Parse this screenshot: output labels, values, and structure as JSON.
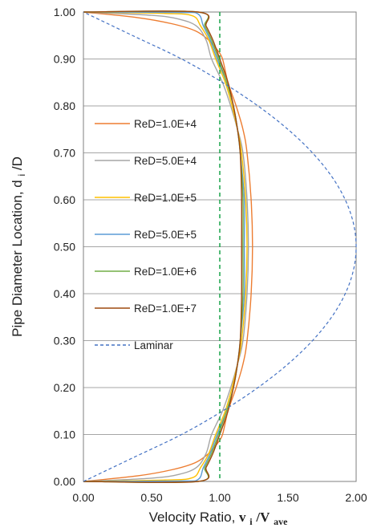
{
  "chart_data": {
    "type": "line",
    "xlabel_main": "Velocity Ratio,",
    "xlabel_var": "v",
    "xlabel_sub1": "i",
    "xlabel_slash": "/V",
    "xlabel_sub2": "ave",
    "ylabel_main": "Pipe Diameter Location, d",
    "ylabel_sub": "i",
    "ylabel_tail": "/D",
    "xlim": [
      0,
      2
    ],
    "ylim": [
      0,
      1
    ],
    "x_ticks": [
      "0.00",
      "0.50",
      "1.00",
      "1.50",
      "2.00"
    ],
    "y_ticks": [
      "0.00",
      "0.10",
      "0.20",
      "0.30",
      "0.40",
      "0.50",
      "0.60",
      "0.70",
      "0.80",
      "0.90",
      "1.00"
    ],
    "grid": "horizontal",
    "legend_position": "left-middle",
    "reference_line": {
      "x": 1.0,
      "style": "dashed",
      "color": "#1aa34a"
    },
    "series": [
      {
        "name": "ReD=1.0E+4",
        "color": "#ed7d31",
        "dash": false,
        "points": [
          [
            0.0,
            0.0
          ],
          [
            0.4,
            0.012
          ],
          [
            0.65,
            0.025
          ],
          [
            0.82,
            0.04
          ],
          [
            0.92,
            0.06
          ],
          [
            0.98,
            0.08
          ],
          [
            1.02,
            0.1
          ],
          [
            1.06,
            0.15
          ],
          [
            1.12,
            0.2
          ],
          [
            1.17,
            0.25
          ],
          [
            1.2,
            0.3
          ],
          [
            1.23,
            0.4
          ],
          [
            1.24,
            0.5
          ],
          [
            1.23,
            0.6
          ],
          [
            1.2,
            0.7
          ],
          [
            1.17,
            0.75
          ],
          [
            1.12,
            0.8
          ],
          [
            1.06,
            0.85
          ],
          [
            1.02,
            0.9
          ],
          [
            0.98,
            0.92
          ],
          [
            0.92,
            0.94
          ],
          [
            0.82,
            0.96
          ],
          [
            0.65,
            0.975
          ],
          [
            0.4,
            0.988
          ],
          [
            0.0,
            1.0
          ]
        ]
      },
      {
        "name": "ReD=5.0E+4",
        "color": "#a5a5a5",
        "dash": false,
        "points": [
          [
            0.0,
            0.0
          ],
          [
            0.5,
            0.007
          ],
          [
            0.7,
            0.015
          ],
          [
            0.83,
            0.03
          ],
          [
            0.9,
            0.06
          ],
          [
            0.94,
            0.1
          ],
          [
            1.02,
            0.15
          ],
          [
            1.08,
            0.2
          ],
          [
            1.13,
            0.25
          ],
          [
            1.17,
            0.3
          ],
          [
            1.2,
            0.4
          ],
          [
            1.21,
            0.5
          ],
          [
            1.2,
            0.6
          ],
          [
            1.17,
            0.7
          ],
          [
            1.13,
            0.75
          ],
          [
            1.08,
            0.8
          ],
          [
            1.02,
            0.85
          ],
          [
            0.94,
            0.9
          ],
          [
            0.9,
            0.94
          ],
          [
            0.83,
            0.97
          ],
          [
            0.7,
            0.985
          ],
          [
            0.5,
            0.993
          ],
          [
            0.0,
            1.0
          ]
        ]
      },
      {
        "name": "ReD=1.0E+5",
        "color": "#ffc000",
        "dash": false,
        "points": [
          [
            0.0,
            0.0
          ],
          [
            0.6,
            0.003
          ],
          [
            0.8,
            0.008
          ],
          [
            0.86,
            0.03
          ],
          [
            0.92,
            0.06
          ],
          [
            0.97,
            0.1
          ],
          [
            1.04,
            0.15
          ],
          [
            1.09,
            0.2
          ],
          [
            1.13,
            0.25
          ],
          [
            1.16,
            0.3
          ],
          [
            1.19,
            0.4
          ],
          [
            1.2,
            0.5
          ],
          [
            1.19,
            0.6
          ],
          [
            1.16,
            0.7
          ],
          [
            1.13,
            0.75
          ],
          [
            1.09,
            0.8
          ],
          [
            1.04,
            0.85
          ],
          [
            0.97,
            0.9
          ],
          [
            0.92,
            0.94
          ],
          [
            0.86,
            0.97
          ],
          [
            0.8,
            0.992
          ],
          [
            0.6,
            0.997
          ],
          [
            0.0,
            1.0
          ]
        ]
      },
      {
        "name": "ReD=5.0E+5",
        "color": "#5b9bd5",
        "dash": false,
        "points": [
          [
            0.0,
            0.0
          ],
          [
            0.7,
            0.001
          ],
          [
            0.84,
            0.004
          ],
          [
            0.88,
            0.03
          ],
          [
            0.93,
            0.06
          ],
          [
            0.98,
            0.1
          ],
          [
            1.05,
            0.15
          ],
          [
            1.1,
            0.2
          ],
          [
            1.13,
            0.25
          ],
          [
            1.15,
            0.3
          ],
          [
            1.18,
            0.4
          ],
          [
            1.18,
            0.5
          ],
          [
            1.18,
            0.6
          ],
          [
            1.15,
            0.7
          ],
          [
            1.13,
            0.75
          ],
          [
            1.1,
            0.8
          ],
          [
            1.05,
            0.85
          ],
          [
            0.98,
            0.9
          ],
          [
            0.93,
            0.94
          ],
          [
            0.88,
            0.97
          ],
          [
            0.84,
            0.996
          ],
          [
            0.7,
            0.999
          ],
          [
            0.0,
            1.0
          ]
        ]
      },
      {
        "name": "ReD=1.0E+6",
        "color": "#70ad47",
        "dash": false,
        "points": [
          [
            0.0,
            0.0
          ],
          [
            0.84,
            0.0
          ],
          [
            0.89,
            0.03
          ],
          [
            0.94,
            0.06
          ],
          [
            0.99,
            0.1
          ],
          [
            1.05,
            0.15
          ],
          [
            1.1,
            0.2
          ],
          [
            1.13,
            0.25
          ],
          [
            1.15,
            0.3
          ],
          [
            1.17,
            0.4
          ],
          [
            1.17,
            0.5
          ],
          [
            1.17,
            0.6
          ],
          [
            1.15,
            0.7
          ],
          [
            1.13,
            0.75
          ],
          [
            1.1,
            0.8
          ],
          [
            1.05,
            0.85
          ],
          [
            0.99,
            0.9
          ],
          [
            0.94,
            0.94
          ],
          [
            0.89,
            0.97
          ],
          [
            0.84,
            1.0
          ],
          [
            0.0,
            1.0
          ]
        ]
      },
      {
        "name": "ReD=1.0E+7",
        "color": "#9e480e",
        "dash": false,
        "points": [
          [
            0.0,
            0.0
          ],
          [
            0.84,
            0.0
          ],
          [
            0.9,
            0.03
          ],
          [
            0.95,
            0.06
          ],
          [
            1.0,
            0.1
          ],
          [
            1.06,
            0.15
          ],
          [
            1.1,
            0.2
          ],
          [
            1.13,
            0.25
          ],
          [
            1.15,
            0.3
          ],
          [
            1.16,
            0.4
          ],
          [
            1.16,
            0.5
          ],
          [
            1.16,
            0.6
          ],
          [
            1.15,
            0.7
          ],
          [
            1.13,
            0.75
          ],
          [
            1.1,
            0.8
          ],
          [
            1.06,
            0.85
          ],
          [
            1.0,
            0.9
          ],
          [
            0.95,
            0.94
          ],
          [
            0.9,
            0.97
          ],
          [
            0.84,
            1.0
          ],
          [
            0.0,
            1.0
          ]
        ]
      },
      {
        "name": "Laminar",
        "color": "#4472c4",
        "dash": true,
        "points": [
          [
            0.0,
            0.0
          ],
          [
            0.36,
            0.05
          ],
          [
            0.72,
            0.1
          ],
          [
            1.02,
            0.15
          ],
          [
            1.28,
            0.2
          ],
          [
            1.5,
            0.25
          ],
          [
            1.68,
            0.3
          ],
          [
            1.82,
            0.35
          ],
          [
            1.92,
            0.4
          ],
          [
            1.98,
            0.45
          ],
          [
            2.0,
            0.5
          ],
          [
            1.98,
            0.55
          ],
          [
            1.92,
            0.6
          ],
          [
            1.82,
            0.65
          ],
          [
            1.68,
            0.7
          ],
          [
            1.5,
            0.75
          ],
          [
            1.28,
            0.8
          ],
          [
            1.02,
            0.85
          ],
          [
            0.72,
            0.9
          ],
          [
            0.36,
            0.95
          ],
          [
            0.0,
            1.0
          ]
        ]
      }
    ]
  }
}
